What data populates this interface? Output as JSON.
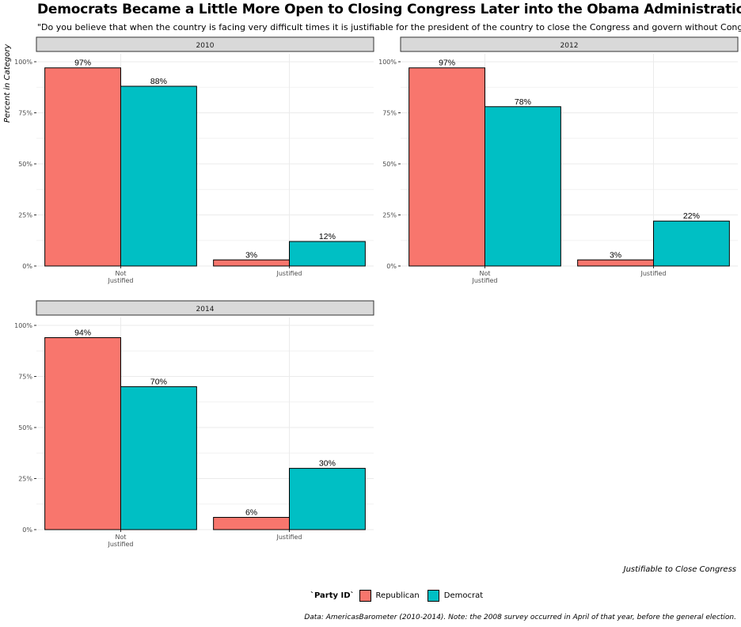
{
  "chart_data": {
    "type": "bar",
    "title": "Democrats Became a Little More Open to Closing Congress Later into the Obama Administration",
    "subtitle": "\"Do you believe that when the country is facing very difficult times it is justifiable for the president of the country to close the Congress and govern without Congress?\"",
    "ylabel": "Percent in Category",
    "xlabel": "Justifiable to Close Congress",
    "caption": "Data: AmericasBarometer (2010-2014). Note: the 2008 survey occurred in April of that year, before the general election.",
    "legend_title": "`Party ID`",
    "legend_position": "bottom",
    "grid": true,
    "ylim": [
      0,
      100
    ],
    "yticks": [
      0,
      25,
      50,
      75,
      100
    ],
    "ytick_labels": [
      "0%",
      "25%",
      "50%",
      "75%",
      "100%"
    ],
    "categories": [
      "Not Justified",
      "Justified"
    ],
    "category_labels": [
      [
        "Not",
        "Justified"
      ],
      [
        "Justified"
      ]
    ],
    "colors": {
      "Republican": "#F8766D",
      "Democrat": "#00BFC4"
    },
    "panels": [
      {
        "year": "2010",
        "series": [
          {
            "name": "Republican",
            "values": [
              97,
              3
            ],
            "labels": [
              "97%",
              "3%"
            ]
          },
          {
            "name": "Democrat",
            "values": [
              88,
              12
            ],
            "labels": [
              "88%",
              "12%"
            ]
          }
        ]
      },
      {
        "year": "2012",
        "series": [
          {
            "name": "Republican",
            "values": [
              97,
              3
            ],
            "labels": [
              "97%",
              "3%"
            ]
          },
          {
            "name": "Democrat",
            "values": [
              78,
              22
            ],
            "labels": [
              "78%",
              "22%"
            ]
          }
        ]
      },
      {
        "year": "2014",
        "series": [
          {
            "name": "Republican",
            "values": [
              94,
              6
            ],
            "labels": [
              "94%",
              "6%"
            ]
          },
          {
            "name": "Democrat",
            "values": [
              70,
              30
            ],
            "labels": [
              "70%",
              "30%"
            ]
          }
        ]
      }
    ]
  }
}
